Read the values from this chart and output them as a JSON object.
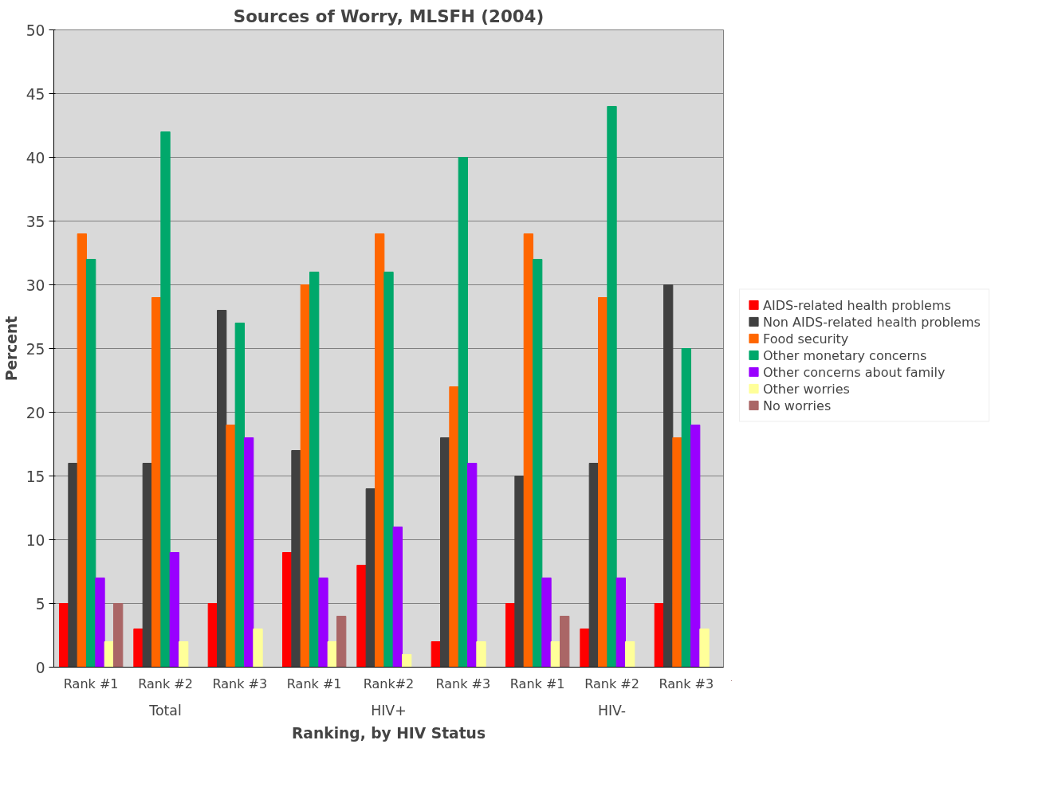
{
  "chart_data": {
    "type": "bar",
    "title": "Sources of Worry, MLSFH (2004)",
    "xlabel": "Ranking, by HIV Status",
    "ylabel": "Percent",
    "categories": [
      "Rank #1",
      "Rank #2",
      "Rank #3",
      "Rank #1",
      "Rank#2",
      "Rank #3",
      "Rank #1",
      "Rank #2",
      "Rank #3"
    ],
    "annotations": [
      "Total",
      "HIV+",
      "HIV-"
    ],
    "series": [
      {
        "name": "AIDS-related health problems",
        "color": "#ff0000",
        "values": [
          5,
          3,
          5,
          9,
          8,
          2,
          5,
          3,
          5
        ]
      },
      {
        "name": "Non AIDS-related health problems",
        "color": "#404040",
        "values": [
          16,
          16,
          28,
          17,
          14,
          18,
          15,
          16,
          30
        ]
      },
      {
        "name": "Food security",
        "color": "#ff6600",
        "values": [
          34,
          29,
          19,
          30,
          34,
          22,
          34,
          29,
          18
        ]
      },
      {
        "name": "Other monetary concerns",
        "color": "#00a86b",
        "values": [
          32,
          42,
          27,
          31,
          31,
          40,
          32,
          44,
          25
        ]
      },
      {
        "name": "Other concerns about family",
        "color": "#9900ff",
        "values": [
          7,
          9,
          18,
          7,
          11,
          16,
          7,
          7,
          19
        ]
      },
      {
        "name": "Other worries",
        "color": "#ffff99",
        "values": [
          2,
          2,
          3,
          2,
          1,
          2,
          2,
          2,
          3
        ]
      },
      {
        "name": "No worries",
        "color": "#aa6666",
        "values": [
          5,
          null,
          null,
          4,
          null,
          null,
          4,
          null,
          null
        ]
      }
    ],
    "ylim": [
      0,
      50
    ],
    "yticks": [
      0,
      5,
      10,
      15,
      20,
      25,
      30,
      35,
      40,
      45,
      50
    ],
    "grid": "y",
    "legend": "right"
  }
}
